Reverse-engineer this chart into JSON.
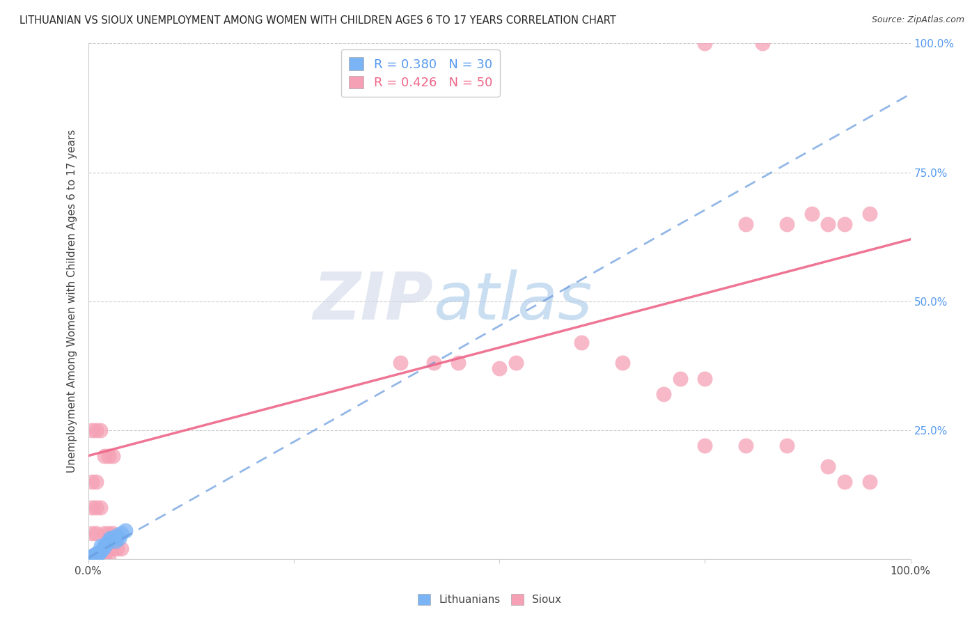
{
  "title": "LITHUANIAN VS SIOUX UNEMPLOYMENT AMONG WOMEN WITH CHILDREN AGES 6 TO 17 YEARS CORRELATION CHART",
  "source": "Source: ZipAtlas.com",
  "ylabel": "Unemployment Among Women with Children Ages 6 to 17 years",
  "xlim": [
    0,
    1.0
  ],
  "ylim": [
    0,
    1.0
  ],
  "xticks": [
    0,
    0.25,
    0.5,
    0.75,
    1.0
  ],
  "yticks": [
    0,
    0.25,
    0.5,
    0.75,
    1.0
  ],
  "xticklabels": [
    "0.0%",
    "",
    "",
    "",
    "100.0%"
  ],
  "yticklabels_right": [
    "",
    "25.0%",
    "50.0%",
    "75.0%",
    "100.0%"
  ],
  "watermark_zip": "ZIP",
  "watermark_atlas": "atlas",
  "lithuanian_R": 0.38,
  "lithuanian_N": 30,
  "sioux_R": 0.426,
  "sioux_N": 50,
  "lithuanian_color": "#7ab4f5",
  "sioux_color": "#f5a0b5",
  "lit_line_color": "#6699dd",
  "sioux_line_color": "#ee6688",
  "lit_x": [
    0.002,
    0.003,
    0.004,
    0.005,
    0.005,
    0.006,
    0.007,
    0.007,
    0.008,
    0.008,
    0.009,
    0.01,
    0.01,
    0.011,
    0.012,
    0.013,
    0.014,
    0.015,
    0.016,
    0.018,
    0.02,
    0.022,
    0.025,
    0.027,
    0.03,
    0.033,
    0.035,
    0.038,
    0.04,
    0.045
  ],
  "lit_y": [
    0.002,
    0.003,
    0.002,
    0.005,
    0.004,
    0.006,
    0.005,
    0.007,
    0.007,
    0.006,
    0.008,
    0.009,
    0.01,
    0.008,
    0.01,
    0.012,
    0.013,
    0.015,
    0.025,
    0.02,
    0.025,
    0.03,
    0.035,
    0.04,
    0.04,
    0.035,
    0.045,
    0.04,
    0.05,
    0.055
  ],
  "sioux_x": [
    0.005,
    0.01,
    0.015,
    0.018,
    0.02,
    0.025,
    0.025,
    0.03,
    0.035,
    0.04,
    0.005,
    0.01,
    0.02,
    0.025,
    0.03,
    0.005,
    0.01,
    0.015,
    0.005,
    0.01,
    0.02,
    0.025,
    0.03,
    0.005,
    0.01,
    0.015,
    0.38,
    0.42,
    0.45,
    0.5,
    0.52,
    0.6,
    0.65,
    0.7,
    0.72,
    0.75,
    0.8,
    0.85,
    0.88,
    0.9,
    0.92,
    0.95,
    0.75,
    0.8,
    0.85,
    0.9,
    0.92,
    0.95,
    0.75,
    0.82
  ],
  "sioux_y": [
    0.0,
    0.0,
    0.0,
    0.0,
    0.0,
    0.0,
    0.02,
    0.02,
    0.02,
    0.02,
    0.05,
    0.05,
    0.05,
    0.05,
    0.05,
    0.1,
    0.1,
    0.1,
    0.15,
    0.15,
    0.2,
    0.2,
    0.2,
    0.25,
    0.25,
    0.25,
    0.38,
    0.38,
    0.38,
    0.37,
    0.38,
    0.42,
    0.38,
    0.32,
    0.35,
    0.35,
    0.65,
    0.65,
    0.67,
    0.65,
    0.65,
    0.67,
    0.22,
    0.22,
    0.22,
    0.18,
    0.15,
    0.15,
    1.0,
    1.0
  ],
  "lit_line_x0": 0.0,
  "lit_line_y0": 0.002,
  "lit_line_x1": 0.07,
  "lit_line_y1": 0.065,
  "sioux_line_x0": 0.0,
  "sioux_line_y0": 0.2,
  "sioux_line_x1": 1.0,
  "sioux_line_y1": 0.62
}
